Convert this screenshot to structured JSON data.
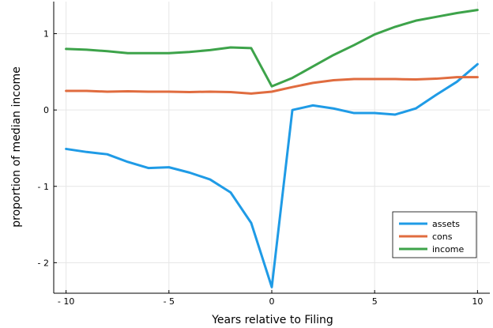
{
  "chart_data": {
    "type": "line",
    "xlabel": "Years relative to Filing",
    "ylabel": "proportion of median income",
    "xlim": [
      -10.6,
      10.6
    ],
    "ylim": [
      -2.4,
      1.42
    ],
    "xticks": [
      -10,
      -5,
      0,
      5,
      10
    ],
    "xtick_labels": [
      "- 10",
      "- 5",
      "0",
      "5",
      "10"
    ],
    "yticks": [
      -2,
      -1,
      0,
      1
    ],
    "ytick_labels": [
      "- 2",
      "- 1",
      "0",
      "1"
    ],
    "grid": true,
    "legend_position": "bottom-right",
    "x": [
      -10,
      -9,
      -8,
      -7,
      -6,
      -5,
      -4,
      -3,
      -2,
      -1,
      0,
      1,
      2,
      3,
      4,
      5,
      6,
      7,
      8,
      9,
      10
    ],
    "series": [
      {
        "name": "assets",
        "color": "#1f9be6",
        "values": [
          -0.51,
          -0.55,
          -0.58,
          -0.68,
          -0.76,
          -0.75,
          -0.82,
          -0.91,
          -1.08,
          -1.48,
          -2.32,
          0.0,
          0.06,
          0.02,
          -0.04,
          -0.04,
          -0.06,
          0.02,
          0.2,
          0.37,
          0.6
        ]
      },
      {
        "name": "cons",
        "color": "#e06c3f",
        "values": [
          0.25,
          0.25,
          0.24,
          0.245,
          0.24,
          0.24,
          0.235,
          0.24,
          0.235,
          0.215,
          0.24,
          0.3,
          0.355,
          0.39,
          0.405,
          0.405,
          0.405,
          0.4,
          0.41,
          0.43,
          0.43
        ]
      },
      {
        "name": "income",
        "color": "#3da34a",
        "values": [
          0.8,
          0.79,
          0.77,
          0.745,
          0.745,
          0.745,
          0.76,
          0.785,
          0.82,
          0.81,
          0.31,
          0.42,
          0.57,
          0.72,
          0.85,
          0.99,
          1.09,
          1.17,
          1.22,
          1.27,
          1.31
        ]
      }
    ]
  }
}
